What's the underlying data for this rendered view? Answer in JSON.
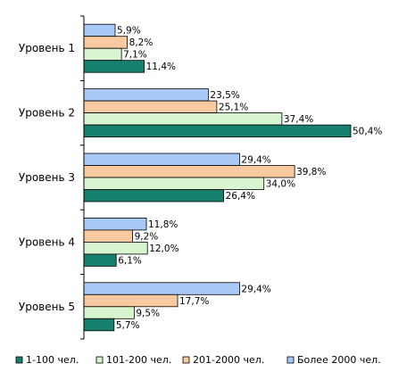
{
  "chart_data": {
    "type": "bar",
    "orientation": "horizontal",
    "categories": [
      "Уровень 1",
      "Уровень 2",
      "Уровень 3",
      "Уровень 4",
      "Уровень 5"
    ],
    "series": [
      {
        "name": "Более 2000 чел.",
        "color": "#a8c8f8",
        "values": [
          5.9,
          23.5,
          29.4,
          11.8,
          29.4
        ],
        "labels": [
          "5,9%",
          "23,5%",
          "29,4%",
          "11,8%",
          "29,4%"
        ]
      },
      {
        "name": "201-2000 чел.",
        "color": "#f9c9a0",
        "values": [
          8.2,
          25.1,
          39.8,
          9.2,
          17.7
        ],
        "labels": [
          "8,2%",
          "25,1%",
          "39,8%",
          "9,2%",
          "17,7%"
        ]
      },
      {
        "name": "101-200 чел.",
        "color": "#d7f5cf",
        "values": [
          7.1,
          37.4,
          34.0,
          12.0,
          9.5
        ],
        "labels": [
          "7,1%",
          "37,4%",
          "34,0%",
          "12,0%",
          "9,5%"
        ]
      },
      {
        "name": "1-100 чел.",
        "color": "#17806f",
        "values": [
          11.4,
          50.4,
          26.4,
          6.1,
          5.7
        ],
        "labels": [
          "11,4%",
          "50,4%",
          "26,4%",
          "6,1%",
          "5,7%"
        ]
      }
    ],
    "legend": [
      "1-100 чел.",
      "101-200 чел.",
      "201-2000 чел.",
      "Более 2000 чел."
    ],
    "legend_position": "bottom",
    "xlim": [
      0,
      50.4
    ],
    "grid": false,
    "title": "",
    "xlabel": "",
    "ylabel": ""
  }
}
